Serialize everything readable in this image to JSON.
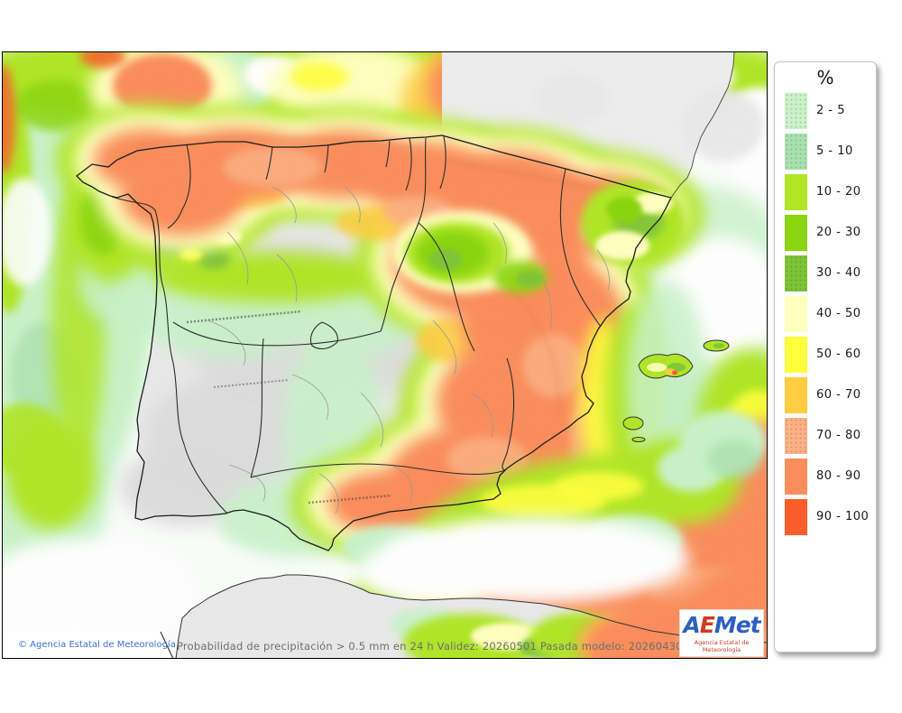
{
  "map": {
    "variable": "Probabilidad de precipitación > 0.5 mm en 24 h",
    "validez": "20260501",
    "pasada_modelo": "2026043000",
    "land_color": "#e9e9e9",
    "sea_color": "#fbfdfb",
    "coast_color": "#1a1a1a"
  },
  "footer": {
    "copyright": "© Agencia Estatal de Meteorología",
    "description": "Probabilidad de precipitación > 0.5 mm en 24 h Validez: 20260501 Pasada modelo: 2026043000"
  },
  "legend": {
    "title": "%",
    "items": [
      {
        "label": "2 - 5",
        "color": "#c9f2c9",
        "speckled": true
      },
      {
        "label": "5 - 10",
        "color": "#a9e0af",
        "speckled": true
      },
      {
        "label": "10 - 20",
        "color": "#b0e626",
        "speckled": false
      },
      {
        "label": "20 - 30",
        "color": "#8ad50f",
        "speckled": false
      },
      {
        "label": "30 - 40",
        "color": "#7fc437",
        "speckled": true
      },
      {
        "label": "40 - 50",
        "color": "#ffffbe",
        "speckled": false
      },
      {
        "label": "50 - 60",
        "color": "#ffff3c",
        "speckled": false
      },
      {
        "label": "60 - 70",
        "color": "#ffcc42",
        "speckled": false
      },
      {
        "label": "70 - 80",
        "color": "#fcb184",
        "speckled": true
      },
      {
        "label": "80 - 90",
        "color": "#fb8d5c",
        "speckled": false
      },
      {
        "label": "90 - 100",
        "color": "#fa5d29",
        "speckled": false
      }
    ]
  },
  "logo": {
    "a": "A",
    "e": "E",
    "met": "Met",
    "subtitle": "Agencia Estatal de Meteorología"
  }
}
